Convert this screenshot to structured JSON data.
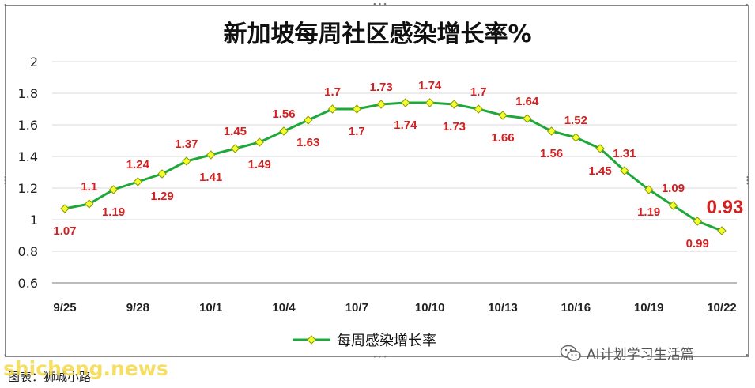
{
  "title": "新加坡每周社区感染增长率%",
  "legend_label": "每周感染增长率",
  "source_label": "图表：狮城小路",
  "watermark_text": "AI计划学习生活篇",
  "site_watermark": "shicheng.news",
  "colors": {
    "line": "#1fa83a",
    "marker_fill": "#f2ff2e",
    "marker_stroke": "#8c9a00",
    "label": "#d42020",
    "grid": "#d9d9d9",
    "axis": "#777777"
  },
  "chart_data": {
    "type": "line",
    "title": "新加坡每周社区感染增长率%",
    "xlabel": "",
    "ylabel": "",
    "ylim": [
      0.6,
      2
    ],
    "yticks": [
      "0.6",
      "0.8",
      "1",
      "1.2",
      "1.4",
      "1.6",
      "1.8",
      "2"
    ],
    "grid": "horizontal",
    "legend": "bottom",
    "xtick_labels": [
      "9/25",
      "9/28",
      "10/1",
      "10/4",
      "10/7",
      "10/10",
      "10/13",
      "10/16",
      "10/19",
      "10/22"
    ],
    "x": [
      "9/25",
      "9/26",
      "9/27",
      "9/28",
      "9/29",
      "9/30",
      "10/1",
      "10/2",
      "10/3",
      "10/4",
      "10/5",
      "10/6",
      "10/7",
      "10/8",
      "10/9",
      "10/10",
      "10/11",
      "10/12",
      "10/13",
      "10/14",
      "10/15",
      "10/16",
      "10/17",
      "10/18",
      "10/19",
      "10/20",
      "10/21",
      "10/22"
    ],
    "series": [
      {
        "name": "每周感染增长率",
        "values": [
          1.07,
          1.1,
          1.19,
          1.24,
          1.29,
          1.37,
          1.41,
          1.45,
          1.49,
          1.56,
          1.63,
          1.7,
          1.7,
          1.73,
          1.74,
          1.74,
          1.73,
          1.7,
          1.66,
          1.64,
          1.56,
          1.52,
          1.45,
          1.31,
          1.19,
          1.09,
          0.99,
          0.93
        ],
        "labels": [
          "1.07",
          "1.1",
          "1.19",
          "1.24",
          "1.29",
          "1.37",
          "1.41",
          "1.45",
          "1.49",
          "1.56",
          "1.63",
          "1.7",
          "1.7",
          "1.73",
          "1.74",
          "1.74",
          "1.73",
          "1.7",
          "1.66",
          "1.64",
          "1.56",
          "1.52",
          "1.45",
          "1.31",
          "1.19",
          "1.09",
          "0.99",
          "0.93"
        ],
        "label_side": [
          "below",
          "above",
          "below",
          "above",
          "below",
          "above",
          "below",
          "above",
          "below",
          "above",
          "below",
          "above",
          "below",
          "above",
          "below",
          "above",
          "below",
          "above",
          "below",
          "above",
          "below",
          "above",
          "below",
          "above",
          "below",
          "above",
          "below",
          "above"
        ],
        "highlight_last": true
      }
    ]
  }
}
